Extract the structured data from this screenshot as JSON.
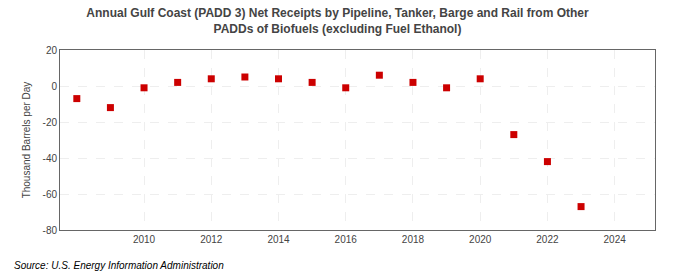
{
  "chart_data": {
    "type": "scatter",
    "title": "Annual Gulf Coast (PADD 3) Net Receipts by Pipeline, Tanker, Barge and Rail from Other\nPADDs of Biofuels (excluding Fuel Ethanol)",
    "ylabel": "Thousand Barrels per Day",
    "annotations": [
      "Source: U.S. Energy Information Administration"
    ],
    "x": [
      2008,
      2009,
      2010,
      2011,
      2012,
      2013,
      2014,
      2015,
      2016,
      2017,
      2018,
      2019,
      2020,
      2021,
      2022,
      2023,
      2024
    ],
    "values": [
      -7,
      -12,
      -1,
      2,
      4,
      5,
      4,
      2,
      -1,
      6,
      2,
      -1,
      4,
      -27,
      -42,
      -67,
      null
    ],
    "color": "#cc0000",
    "marker": "square",
    "xlim": [
      2007.5,
      2025.2
    ],
    "xticks": [
      2010,
      2012,
      2014,
      2016,
      2018,
      2020,
      2022,
      2024
    ],
    "ylim": [
      -80,
      20
    ],
    "yticks": [
      -80,
      -60,
      -40,
      -20,
      0,
      20
    ],
    "grid": true
  }
}
